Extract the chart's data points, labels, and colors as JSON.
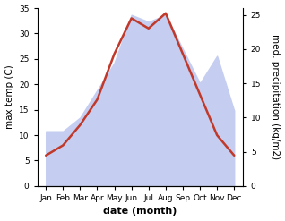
{
  "months": [
    "Jan",
    "Feb",
    "Mar",
    "Apr",
    "May",
    "Jun",
    "Jul",
    "Aug",
    "Sep",
    "Oct",
    "Nov",
    "Dec"
  ],
  "month_indices": [
    0,
    1,
    2,
    3,
    4,
    5,
    6,
    7,
    8,
    9,
    10,
    11
  ],
  "max_temp": [
    6,
    8,
    12,
    17,
    26,
    33,
    31,
    34,
    26,
    18,
    10,
    6
  ],
  "precipitation": [
    8,
    8,
    10,
    14,
    18,
    25,
    24,
    25,
    20,
    15,
    19,
    11
  ],
  "temp_color": "#c0392b",
  "precip_fill_color": "#c5cef0",
  "precip_edge_color": "#a0aad8",
  "temp_ylim": [
    0,
    35
  ],
  "precip_ylim": [
    0,
    26
  ],
  "temp_yticks": [
    0,
    5,
    10,
    15,
    20,
    25,
    30,
    35
  ],
  "precip_yticks": [
    0,
    5,
    10,
    15,
    20,
    25
  ],
  "xlabel": "date (month)",
  "ylabel_left": "max temp (C)",
  "ylabel_right": "med. precipitation (kg/m2)",
  "background_color": "#ffffff",
  "plot_bg_color": "#e8ecf8",
  "label_fontsize": 7.5,
  "tick_fontsize": 6.5,
  "xlabel_fontsize": 8
}
